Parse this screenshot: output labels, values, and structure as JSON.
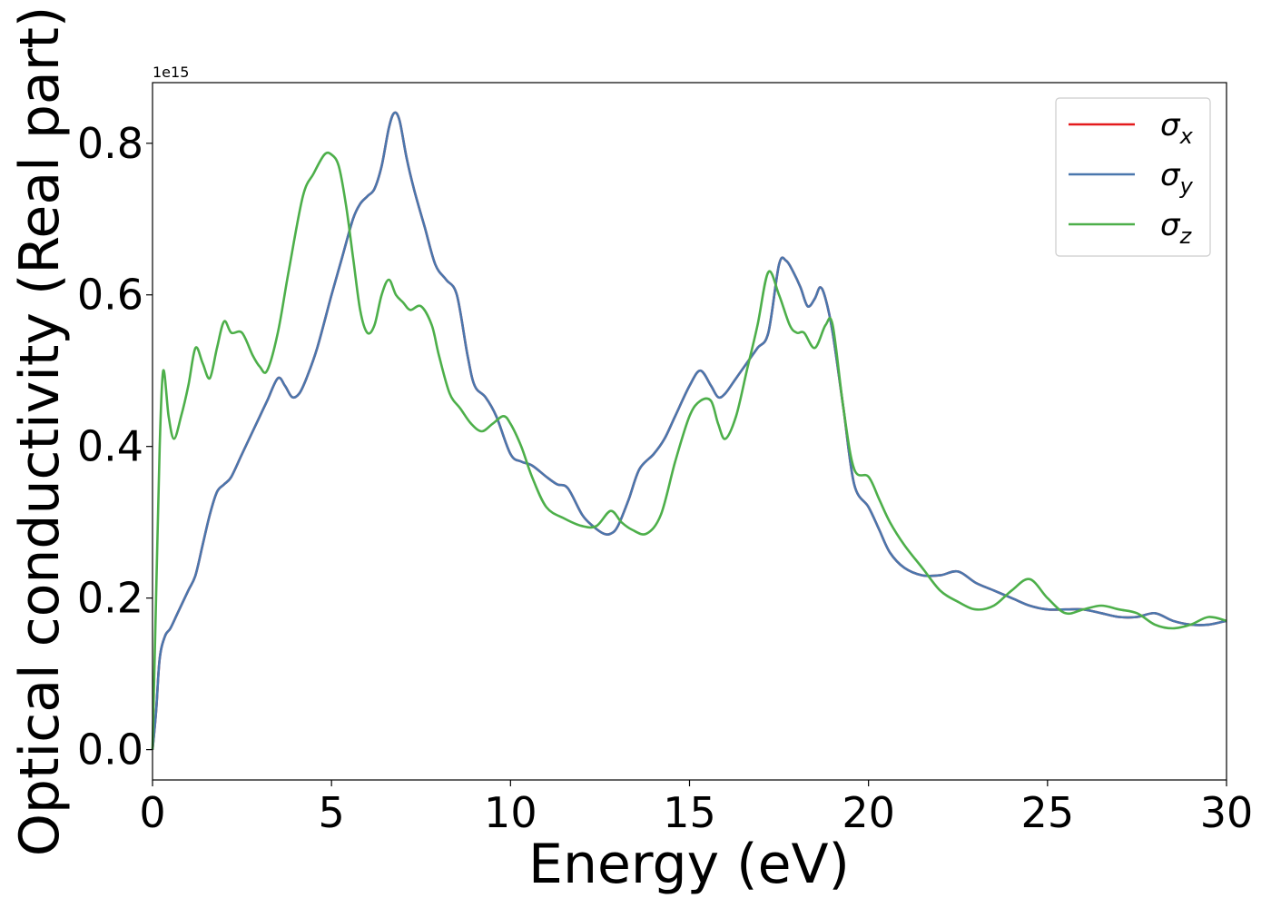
{
  "chart_data": {
    "type": "line",
    "xlabel": "Energy (eV)",
    "ylabel": "Optical conductivity (Real part)",
    "offset_text": "1e15",
    "xlim": [
      0,
      30
    ],
    "ylim": [
      -0.04,
      0.88
    ],
    "y_scale_note": "values are in units of 1e15",
    "xticks": [
      0,
      5,
      10,
      15,
      20,
      25,
      30
    ],
    "xtick_labels": [
      "0",
      "5",
      "10",
      "15",
      "20",
      "25",
      "30"
    ],
    "yticks": [
      0.0,
      0.2,
      0.4,
      0.6,
      0.8
    ],
    "ytick_labels": [
      "0.0",
      "0.2",
      "0.4",
      "0.6",
      "0.8"
    ],
    "grid": false,
    "legend_position": "top-right",
    "series": [
      {
        "name": "σx",
        "legend_base": "σ",
        "legend_sub": "x",
        "color": "#e41a1c",
        "x": [
          0,
          0.1,
          0.2,
          0.35,
          0.5,
          0.7,
          1.0,
          1.2,
          1.4,
          1.6,
          1.8,
          2.0,
          2.2,
          2.5,
          2.8,
          3.0,
          3.2,
          3.5,
          3.7,
          3.9,
          4.1,
          4.3,
          4.6,
          5.0,
          5.3,
          5.6,
          5.8,
          6.0,
          6.2,
          6.4,
          6.6,
          6.75,
          6.9,
          7.1,
          7.3,
          7.6,
          7.9,
          8.2,
          8.5,
          8.8,
          9.0,
          9.3,
          9.6,
          10.0,
          10.3,
          10.6,
          11.0,
          11.3,
          11.6,
          12.0,
          12.3,
          12.6,
          12.8,
          13.0,
          13.3,
          13.6,
          14.0,
          14.3,
          14.6,
          15.0,
          15.3,
          15.6,
          15.8,
          16.0,
          16.3,
          16.6,
          16.9,
          17.2,
          17.5,
          17.7,
          17.9,
          18.1,
          18.3,
          18.5,
          18.65,
          18.8,
          19.0,
          19.3,
          19.6,
          20.0,
          20.3,
          20.6,
          21.0,
          21.5,
          22.0,
          22.5,
          23.0,
          23.5,
          24.0,
          24.5,
          25.0,
          25.5,
          26.0,
          26.5,
          27.0,
          27.5,
          28.0,
          28.5,
          29.0,
          29.5,
          30.0
        ],
        "y": [
          0.0,
          0.05,
          0.12,
          0.15,
          0.16,
          0.18,
          0.21,
          0.23,
          0.27,
          0.31,
          0.34,
          0.35,
          0.36,
          0.39,
          0.42,
          0.44,
          0.46,
          0.49,
          0.48,
          0.465,
          0.47,
          0.49,
          0.53,
          0.6,
          0.65,
          0.7,
          0.72,
          0.73,
          0.74,
          0.77,
          0.82,
          0.84,
          0.83,
          0.78,
          0.74,
          0.69,
          0.64,
          0.62,
          0.6,
          0.52,
          0.48,
          0.465,
          0.44,
          0.39,
          0.38,
          0.375,
          0.36,
          0.35,
          0.345,
          0.31,
          0.295,
          0.285,
          0.285,
          0.295,
          0.33,
          0.37,
          0.39,
          0.41,
          0.44,
          0.48,
          0.5,
          0.48,
          0.465,
          0.47,
          0.49,
          0.51,
          0.53,
          0.55,
          0.64,
          0.645,
          0.63,
          0.61,
          0.585,
          0.595,
          0.61,
          0.595,
          0.55,
          0.45,
          0.35,
          0.32,
          0.29,
          0.26,
          0.24,
          0.23,
          0.23,
          0.235,
          0.22,
          0.21,
          0.2,
          0.19,
          0.185,
          0.185,
          0.185,
          0.18,
          0.175,
          0.175,
          0.18,
          0.17,
          0.165,
          0.165,
          0.17
        ]
      },
      {
        "name": "σy",
        "legend_base": "σ",
        "legend_sub": "y",
        "color": "#4a77ad",
        "x": [
          0,
          0.1,
          0.2,
          0.35,
          0.5,
          0.7,
          1.0,
          1.2,
          1.4,
          1.6,
          1.8,
          2.0,
          2.2,
          2.5,
          2.8,
          3.0,
          3.2,
          3.5,
          3.7,
          3.9,
          4.1,
          4.3,
          4.6,
          5.0,
          5.3,
          5.6,
          5.8,
          6.0,
          6.2,
          6.4,
          6.6,
          6.75,
          6.9,
          7.1,
          7.3,
          7.6,
          7.9,
          8.2,
          8.5,
          8.8,
          9.0,
          9.3,
          9.6,
          10.0,
          10.3,
          10.6,
          11.0,
          11.3,
          11.6,
          12.0,
          12.3,
          12.6,
          12.8,
          13.0,
          13.3,
          13.6,
          14.0,
          14.3,
          14.6,
          15.0,
          15.3,
          15.6,
          15.8,
          16.0,
          16.3,
          16.6,
          16.9,
          17.2,
          17.5,
          17.7,
          17.9,
          18.1,
          18.3,
          18.5,
          18.65,
          18.8,
          19.0,
          19.3,
          19.6,
          20.0,
          20.3,
          20.6,
          21.0,
          21.5,
          22.0,
          22.5,
          23.0,
          23.5,
          24.0,
          24.5,
          25.0,
          25.5,
          26.0,
          26.5,
          27.0,
          27.5,
          28.0,
          28.5,
          29.0,
          29.5,
          30.0
        ],
        "y": [
          0.0,
          0.05,
          0.12,
          0.15,
          0.16,
          0.18,
          0.21,
          0.23,
          0.27,
          0.31,
          0.34,
          0.35,
          0.36,
          0.39,
          0.42,
          0.44,
          0.46,
          0.49,
          0.48,
          0.465,
          0.47,
          0.49,
          0.53,
          0.6,
          0.65,
          0.7,
          0.72,
          0.73,
          0.74,
          0.77,
          0.82,
          0.84,
          0.83,
          0.78,
          0.74,
          0.69,
          0.64,
          0.62,
          0.6,
          0.52,
          0.48,
          0.465,
          0.44,
          0.39,
          0.38,
          0.375,
          0.36,
          0.35,
          0.345,
          0.31,
          0.295,
          0.285,
          0.285,
          0.295,
          0.33,
          0.37,
          0.39,
          0.41,
          0.44,
          0.48,
          0.5,
          0.48,
          0.465,
          0.47,
          0.49,
          0.51,
          0.53,
          0.55,
          0.64,
          0.645,
          0.63,
          0.61,
          0.585,
          0.595,
          0.61,
          0.595,
          0.55,
          0.45,
          0.35,
          0.32,
          0.29,
          0.26,
          0.24,
          0.23,
          0.23,
          0.235,
          0.22,
          0.21,
          0.2,
          0.19,
          0.185,
          0.185,
          0.185,
          0.18,
          0.175,
          0.175,
          0.18,
          0.17,
          0.165,
          0.165,
          0.17
        ]
      },
      {
        "name": "σz",
        "legend_base": "σ",
        "legend_sub": "z",
        "color": "#4daf4a",
        "x": [
          0,
          0.1,
          0.2,
          0.3,
          0.45,
          0.6,
          0.8,
          1.0,
          1.2,
          1.4,
          1.6,
          1.8,
          2.0,
          2.2,
          2.5,
          2.8,
          3.0,
          3.2,
          3.5,
          3.8,
          4.2,
          4.5,
          4.8,
          5.0,
          5.2,
          5.4,
          5.6,
          5.8,
          6.0,
          6.2,
          6.4,
          6.6,
          6.8,
          7.0,
          7.2,
          7.5,
          7.8,
          8.0,
          8.3,
          8.6,
          8.9,
          9.2,
          9.5,
          9.8,
          10.0,
          10.3,
          10.6,
          11.0,
          11.5,
          12.0,
          12.4,
          12.8,
          13.1,
          13.4,
          13.8,
          14.2,
          14.6,
          15.0,
          15.3,
          15.6,
          15.8,
          16.0,
          16.3,
          16.6,
          16.9,
          17.2,
          17.5,
          17.8,
          18.0,
          18.2,
          18.5,
          18.8,
          19.0,
          19.3,
          19.6,
          20.0,
          20.3,
          20.6,
          21.0,
          21.5,
          22.0,
          22.5,
          23.0,
          23.5,
          24.0,
          24.5,
          25.0,
          25.5,
          26.0,
          26.5,
          27.0,
          27.5,
          28.0,
          28.5,
          29.0,
          29.5,
          30.0
        ],
        "y": [
          0.0,
          0.2,
          0.4,
          0.5,
          0.44,
          0.41,
          0.44,
          0.48,
          0.53,
          0.51,
          0.49,
          0.53,
          0.565,
          0.55,
          0.55,
          0.52,
          0.505,
          0.5,
          0.55,
          0.63,
          0.73,
          0.76,
          0.785,
          0.785,
          0.77,
          0.72,
          0.65,
          0.58,
          0.55,
          0.56,
          0.6,
          0.62,
          0.6,
          0.59,
          0.58,
          0.585,
          0.56,
          0.52,
          0.47,
          0.45,
          0.43,
          0.42,
          0.43,
          0.44,
          0.43,
          0.4,
          0.36,
          0.32,
          0.305,
          0.295,
          0.295,
          0.315,
          0.3,
          0.29,
          0.285,
          0.31,
          0.38,
          0.44,
          0.46,
          0.46,
          0.43,
          0.41,
          0.44,
          0.5,
          0.56,
          0.63,
          0.6,
          0.56,
          0.55,
          0.55,
          0.53,
          0.56,
          0.56,
          0.45,
          0.37,
          0.36,
          0.33,
          0.3,
          0.27,
          0.24,
          0.21,
          0.195,
          0.185,
          0.19,
          0.21,
          0.225,
          0.2,
          0.18,
          0.185,
          0.19,
          0.185,
          0.18,
          0.165,
          0.16,
          0.165,
          0.175,
          0.17
        ]
      }
    ]
  }
}
